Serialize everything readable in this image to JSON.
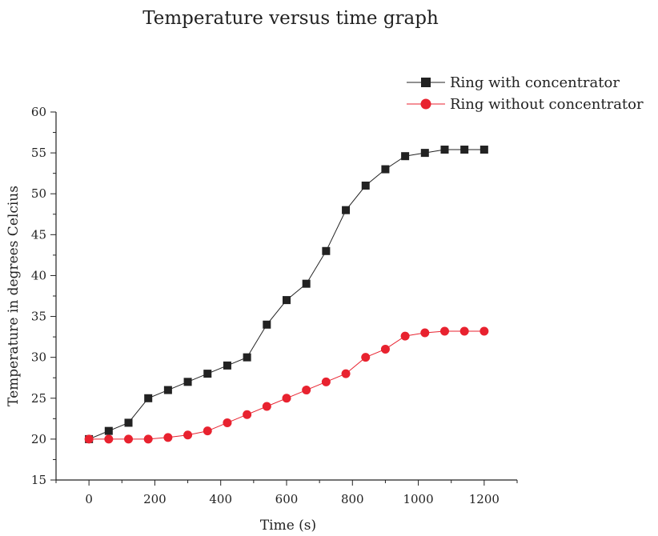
{
  "chart_data": {
    "type": "line",
    "title": "Temperature versus time graph",
    "xlabel": "Time (s)",
    "ylabel": "Temperature in degrees Celcius",
    "xlim": [
      -100,
      1300
    ],
    "ylim": [
      15,
      60
    ],
    "xticks": [
      0,
      200,
      400,
      600,
      800,
      1000,
      1200
    ],
    "yticks": [
      15,
      20,
      25,
      30,
      35,
      40,
      45,
      50,
      55,
      60
    ],
    "grid": false,
    "legend_position": "top-right",
    "x": [
      0,
      60,
      120,
      180,
      240,
      300,
      360,
      420,
      480,
      540,
      600,
      660,
      720,
      780,
      840,
      900,
      960,
      1020,
      1080,
      1140,
      1200
    ],
    "series": [
      {
        "name": "Ring with concentrator",
        "color": "#222222",
        "marker": "square",
        "values": [
          20,
          21,
          22,
          25,
          26,
          27,
          28,
          29,
          30,
          34,
          37,
          39,
          43,
          48,
          51,
          53,
          54.6,
          55,
          55.4,
          55.4,
          55.4
        ]
      },
      {
        "name": "Ring without concentrator",
        "color": "#e8222f",
        "marker": "circle",
        "values": [
          20,
          20,
          20,
          20,
          20.2,
          20.5,
          21,
          22,
          23,
          24,
          25,
          26,
          27,
          28,
          30,
          31,
          32.6,
          33,
          33.2,
          33.2,
          33.2
        ]
      }
    ]
  }
}
